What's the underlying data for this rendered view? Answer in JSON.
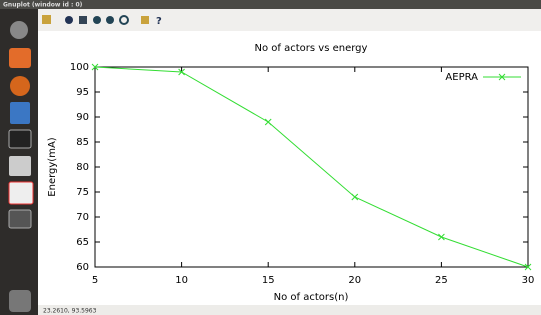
{
  "window": {
    "title": "Gnuplot (window id : 0)",
    "status": "23.2610, 93.5963"
  },
  "toolbar": {
    "help": "?"
  },
  "chart_data": {
    "type": "line",
    "title": "No of actors vs energy",
    "x_label": "No of actors(n)",
    "y_label": "Energy(mA)",
    "x": [
      5,
      10,
      15,
      20,
      25,
      30
    ],
    "series": [
      {
        "name": "AEPRA",
        "color": "#33dd33",
        "values": [
          100,
          99,
          89,
          74,
          66,
          60
        ]
      }
    ],
    "xlim": [
      5,
      30
    ],
    "xticks": [
      5,
      10,
      15,
      20,
      25,
      30
    ],
    "ylim": [
      60,
      100
    ],
    "yticks": [
      60,
      65,
      70,
      75,
      80,
      85,
      90,
      95,
      100
    ],
    "grid": false,
    "legend": "top-right"
  }
}
